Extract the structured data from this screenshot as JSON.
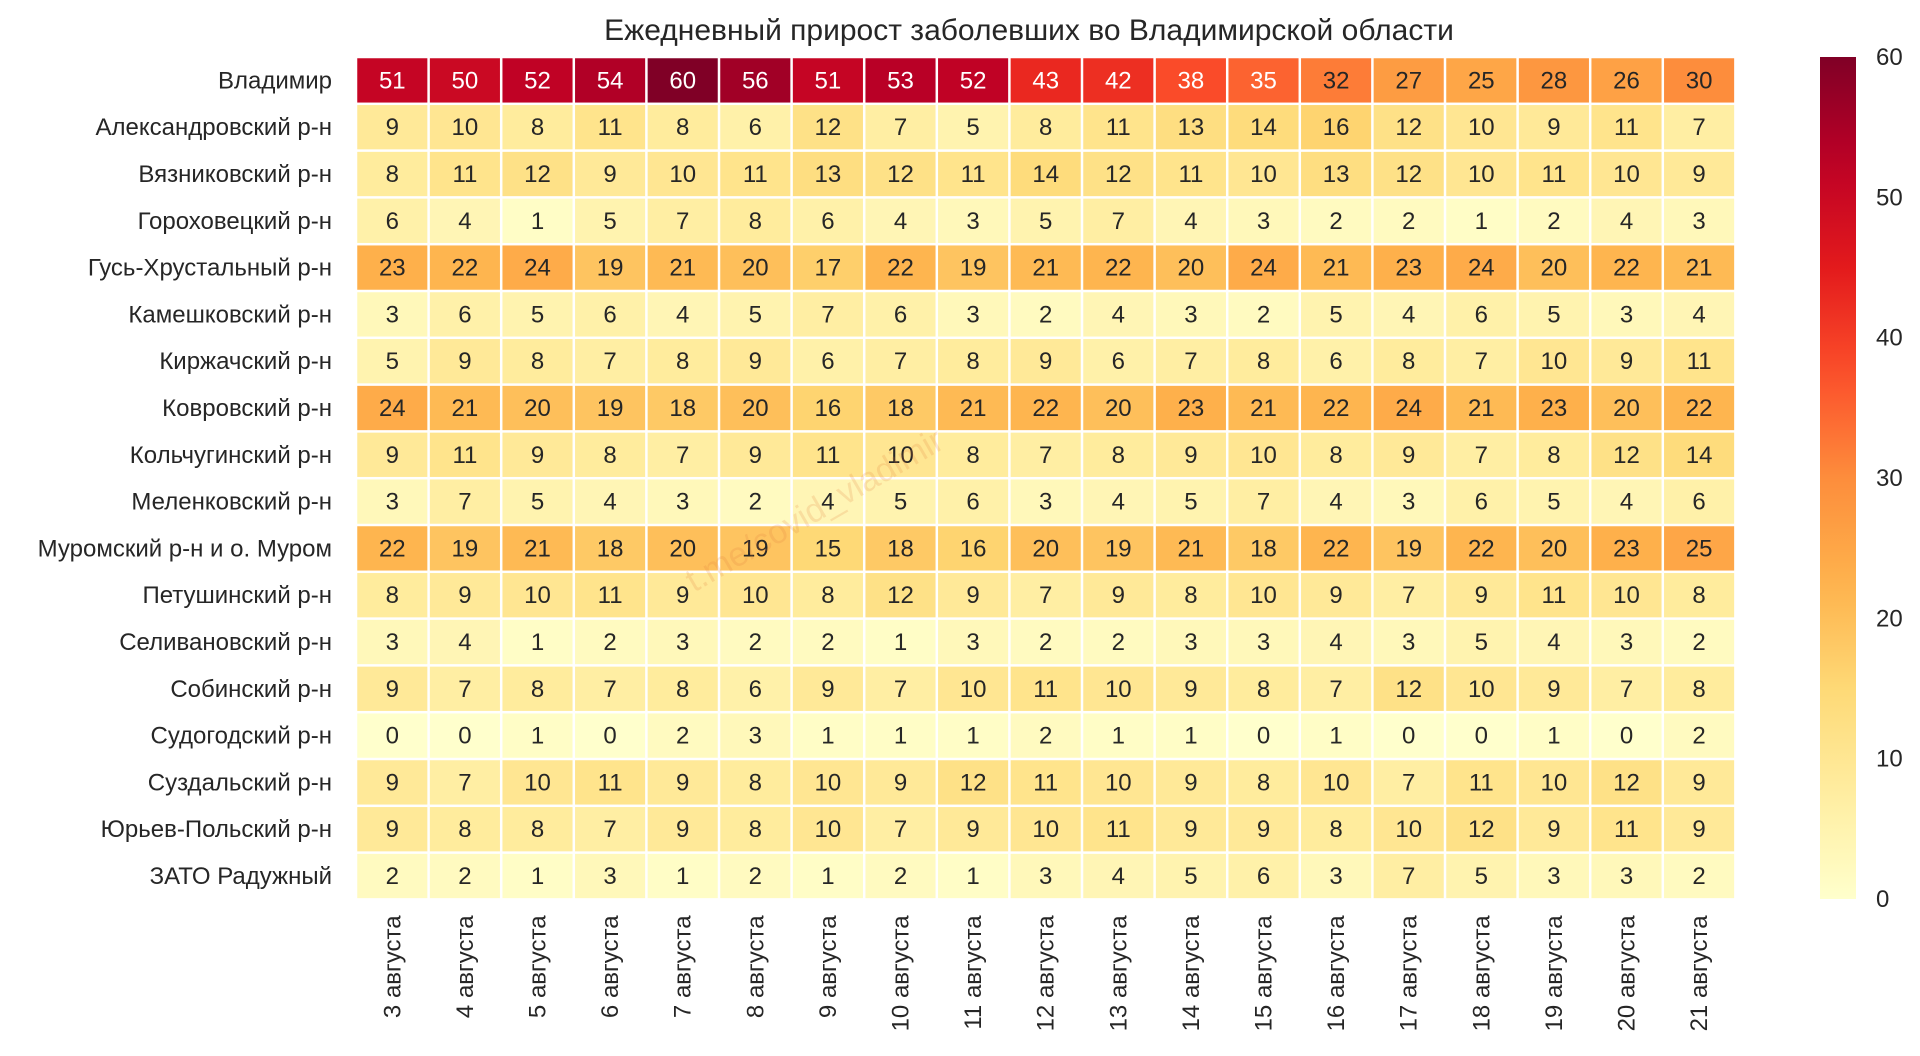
{
  "chart_data": {
    "type": "heatmap",
    "title": "Ежедневный прирост заболевших во Владимирской области",
    "watermark": "t.me/covid_vladimir",
    "rows": [
      "Владимир",
      "Александровский р-н",
      "Вязниковский р-н",
      "Гороховецкий р-н",
      "Гусь-Хрустальный р-н",
      "Камешковский р-н",
      "Киржачский р-н",
      "Ковровский р-н",
      "Кольчугинский р-н",
      "Меленковский р-н",
      "Муромский р-н и о. Муром",
      "Петушинский р-н",
      "Селивановский р-н",
      "Собинский р-н",
      "Судогодский р-н",
      "Суздальский р-н",
      "Юрьев-Польский р-н",
      "ЗАТО Радужный"
    ],
    "columns": [
      "3 августа",
      "4 августа",
      "5 августа",
      "6 августа",
      "7 августа",
      "8 августа",
      "9 августа",
      "10 августа",
      "11 августа",
      "12 августа",
      "13 августа",
      "14 августа",
      "15 августа",
      "16 августа",
      "17 августа",
      "18 августа",
      "19 августа",
      "20 августа",
      "21 августа"
    ],
    "values": [
      [
        51,
        50,
        52,
        54,
        60,
        56,
        51,
        53,
        52,
        43,
        42,
        38,
        35,
        32,
        27,
        25,
        28,
        26,
        30
      ],
      [
        9,
        10,
        8,
        11,
        8,
        6,
        12,
        7,
        5,
        8,
        11,
        13,
        14,
        16,
        12,
        10,
        9,
        11,
        7
      ],
      [
        8,
        11,
        12,
        9,
        10,
        11,
        13,
        12,
        11,
        14,
        12,
        11,
        10,
        13,
        12,
        10,
        11,
        10,
        9
      ],
      [
        6,
        4,
        1,
        5,
        7,
        8,
        6,
        4,
        3,
        5,
        7,
        4,
        3,
        2,
        2,
        1,
        2,
        4,
        3
      ],
      [
        23,
        22,
        24,
        19,
        21,
        20,
        17,
        22,
        19,
        21,
        22,
        20,
        24,
        21,
        23,
        24,
        20,
        22,
        21
      ],
      [
        3,
        6,
        5,
        6,
        4,
        5,
        7,
        6,
        3,
        2,
        4,
        3,
        2,
        5,
        4,
        6,
        5,
        3,
        4
      ],
      [
        5,
        9,
        8,
        7,
        8,
        9,
        6,
        7,
        8,
        9,
        6,
        7,
        8,
        6,
        8,
        7,
        10,
        9,
        11
      ],
      [
        24,
        21,
        20,
        19,
        18,
        20,
        16,
        18,
        21,
        22,
        20,
        23,
        21,
        22,
        24,
        21,
        23,
        20,
        22
      ],
      [
        9,
        11,
        9,
        8,
        7,
        9,
        11,
        10,
        8,
        7,
        8,
        9,
        10,
        8,
        9,
        7,
        8,
        12,
        14
      ],
      [
        3,
        7,
        5,
        4,
        3,
        2,
        4,
        5,
        6,
        3,
        4,
        5,
        7,
        4,
        3,
        6,
        5,
        4,
        6
      ],
      [
        22,
        19,
        21,
        18,
        20,
        19,
        15,
        18,
        16,
        20,
        19,
        21,
        18,
        22,
        19,
        22,
        20,
        23,
        25
      ],
      [
        8,
        9,
        10,
        11,
        9,
        10,
        8,
        12,
        9,
        7,
        9,
        8,
        10,
        9,
        7,
        9,
        11,
        10,
        8
      ],
      [
        3,
        4,
        1,
        2,
        3,
        2,
        2,
        1,
        3,
        2,
        2,
        3,
        3,
        4,
        3,
        5,
        4,
        3,
        2
      ],
      [
        9,
        7,
        8,
        7,
        8,
        6,
        9,
        7,
        10,
        11,
        10,
        9,
        8,
        7,
        12,
        10,
        9,
        7,
        8
      ],
      [
        0,
        0,
        1,
        0,
        2,
        3,
        1,
        1,
        1,
        2,
        1,
        1,
        0,
        1,
        0,
        0,
        1,
        0,
        2
      ],
      [
        9,
        7,
        10,
        11,
        9,
        8,
        10,
        9,
        12,
        11,
        10,
        9,
        8,
        10,
        7,
        11,
        10,
        12,
        9
      ],
      [
        9,
        8,
        8,
        7,
        9,
        8,
        10,
        7,
        9,
        10,
        11,
        9,
        9,
        8,
        10,
        12,
        9,
        11,
        9
      ],
      [
        2,
        2,
        1,
        3,
        1,
        2,
        1,
        2,
        1,
        3,
        4,
        5,
        6,
        3,
        7,
        5,
        3,
        3,
        2
      ]
    ],
    "colorbar": {
      "min": 0,
      "max": 60,
      "ticks": [
        0,
        10,
        20,
        30,
        40,
        50,
        60
      ],
      "colormap": "YlOrRd"
    }
  }
}
